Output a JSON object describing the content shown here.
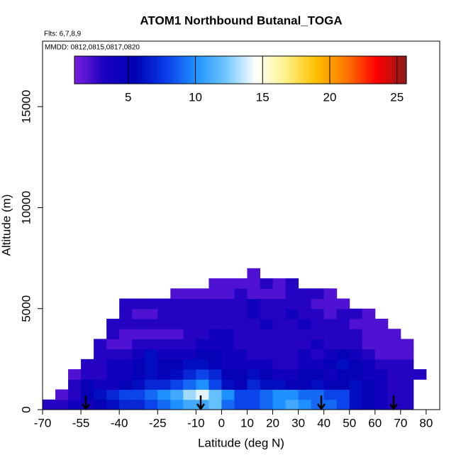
{
  "chart_data": {
    "type": "heatmap",
    "title": "ATOM1 Northbound Butanal_TOGA",
    "annotations": [
      "Flts: 6,7,8,9",
      "MMDD: 0812,0815,0817,0820"
    ],
    "xlabel": "Latitude (deg N)",
    "ylabel": "Altitude (m)",
    "xlim": [
      -70,
      85.3
    ],
    "xticks": [
      -70,
      -55,
      -40,
      -25,
      -10,
      0,
      10,
      20,
      30,
      40,
      50,
      60,
      70,
      80
    ],
    "ylim": [
      0,
      18240
    ],
    "yticks": [
      0,
      5000,
      10000,
      15000
    ],
    "clim": [
      1,
      25.7
    ],
    "cticks": [
      5,
      10,
      15,
      20,
      25
    ],
    "colormap": [
      "#7a1fe0",
      "#1a00c0",
      "#0000b4",
      "#0a3ae8",
      "#1e90ff",
      "#6cc6fa",
      "#ffffff",
      "#fff28a",
      "#ffc000",
      "#ff7800",
      "#ff0000",
      "#8b1a1a"
    ],
    "x_bins": [
      -70,
      -65,
      -60,
      -55,
      -50,
      -45,
      -40,
      -35,
      -30,
      -25,
      -20,
      -15,
      -10,
      -5,
      0,
      5,
      10,
      15,
      20,
      25,
      30,
      35,
      40,
      45,
      50,
      55,
      60,
      65,
      70,
      75,
      80
    ],
    "y_bins": [
      0,
      500,
      1000,
      1500,
      2000,
      2500,
      3000,
      3500,
      4000,
      4500,
      5000,
      5500,
      6000,
      6500,
      7000
    ],
    "z": [
      [
        3,
        3,
        4,
        4,
        5,
        6,
        7,
        7,
        8,
        9,
        10,
        11,
        11,
        12,
        9,
        8,
        8,
        9,
        10,
        11,
        10,
        9,
        9,
        8,
        6,
        5,
        4,
        3,
        3,
        null
      ],
      [
        null,
        2,
        3,
        5,
        6,
        7,
        8,
        8,
        9,
        10,
        11,
        13,
        14,
        12,
        10,
        8,
        8,
        9,
        10,
        10,
        9,
        9,
        8,
        8,
        6,
        5,
        4,
        3,
        3,
        null
      ],
      [
        null,
        null,
        3,
        5,
        4,
        4,
        5,
        6,
        7,
        7,
        8,
        9,
        10,
        8,
        6,
        5,
        7,
        6,
        6,
        5,
        5,
        6,
        5,
        5,
        6,
        5,
        4,
        3,
        3,
        null
      ],
      [
        null,
        null,
        2,
        3,
        3,
        4,
        4,
        5,
        6,
        5,
        6,
        7,
        8,
        7,
        5,
        5,
        6,
        5,
        4,
        4,
        5,
        5,
        4,
        5,
        5,
        4,
        4,
        3,
        3,
        3
      ],
      [
        null,
        null,
        null,
        3,
        3,
        4,
        4,
        5,
        6,
        5,
        5,
        6,
        6,
        5,
        4,
        4,
        4,
        4,
        3,
        3,
        4,
        4,
        5,
        6,
        5,
        4,
        3,
        3,
        3,
        null
      ],
      [
        null,
        null,
        null,
        null,
        3,
        3,
        3,
        4,
        6,
        4,
        4,
        4,
        5,
        5,
        4,
        4,
        3,
        3,
        3,
        3,
        4,
        3,
        4,
        5,
        4,
        3,
        2,
        2,
        2,
        null
      ],
      [
        null,
        null,
        null,
        null,
        3,
        2,
        2,
        3,
        3,
        3,
        3,
        3,
        4,
        4,
        4,
        3,
        3,
        3,
        3,
        3,
        3,
        4,
        3,
        3,
        3,
        2,
        2,
        2,
        2,
        null
      ],
      [
        null,
        null,
        null,
        null,
        null,
        3,
        2,
        2,
        2,
        2,
        2,
        3,
        3,
        4,
        4,
        3,
        3,
        3,
        3,
        3,
        3,
        3,
        3,
        3,
        3,
        2,
        2,
        2,
        null,
        null
      ],
      [
        null,
        null,
        null,
        null,
        null,
        3,
        3,
        3,
        3,
        3,
        3,
        3,
        3,
        3,
        3,
        3,
        3,
        4,
        3,
        3,
        4,
        3,
        3,
        3,
        2,
        2,
        2,
        null,
        null,
        null
      ],
      [
        null,
        null,
        null,
        null,
        null,
        null,
        3,
        2,
        2,
        3,
        3,
        3,
        3,
        3,
        3,
        3,
        4,
        3,
        3,
        4,
        3,
        3,
        2,
        3,
        3,
        2,
        null,
        null,
        null,
        null
      ],
      [
        null,
        null,
        null,
        null,
        null,
        null,
        3,
        3,
        3,
        3,
        3,
        3,
        3,
        3,
        3,
        3,
        4,
        3,
        3,
        3,
        3,
        2,
        2,
        2,
        null,
        null,
        null,
        null,
        null,
        null
      ],
      [
        null,
        null,
        null,
        null,
        null,
        null,
        null,
        null,
        null,
        null,
        2,
        2,
        2,
        2,
        2,
        3,
        2,
        2,
        2,
        3,
        3,
        3,
        2,
        null,
        null,
        null,
        null,
        null,
        null,
        null
      ],
      [
        null,
        null,
        null,
        null,
        null,
        null,
        null,
        null,
        null,
        null,
        null,
        null,
        null,
        2,
        2,
        2,
        2,
        3,
        2,
        3,
        null,
        null,
        null,
        null,
        null,
        null,
        null,
        null,
        null,
        null
      ],
      [
        null,
        null,
        null,
        null,
        null,
        null,
        null,
        null,
        null,
        null,
        null,
        null,
        null,
        null,
        null,
        null,
        2,
        null,
        null,
        null,
        null,
        null,
        null,
        null,
        null,
        null,
        null,
        null,
        null,
        null
      ]
    ]
  }
}
